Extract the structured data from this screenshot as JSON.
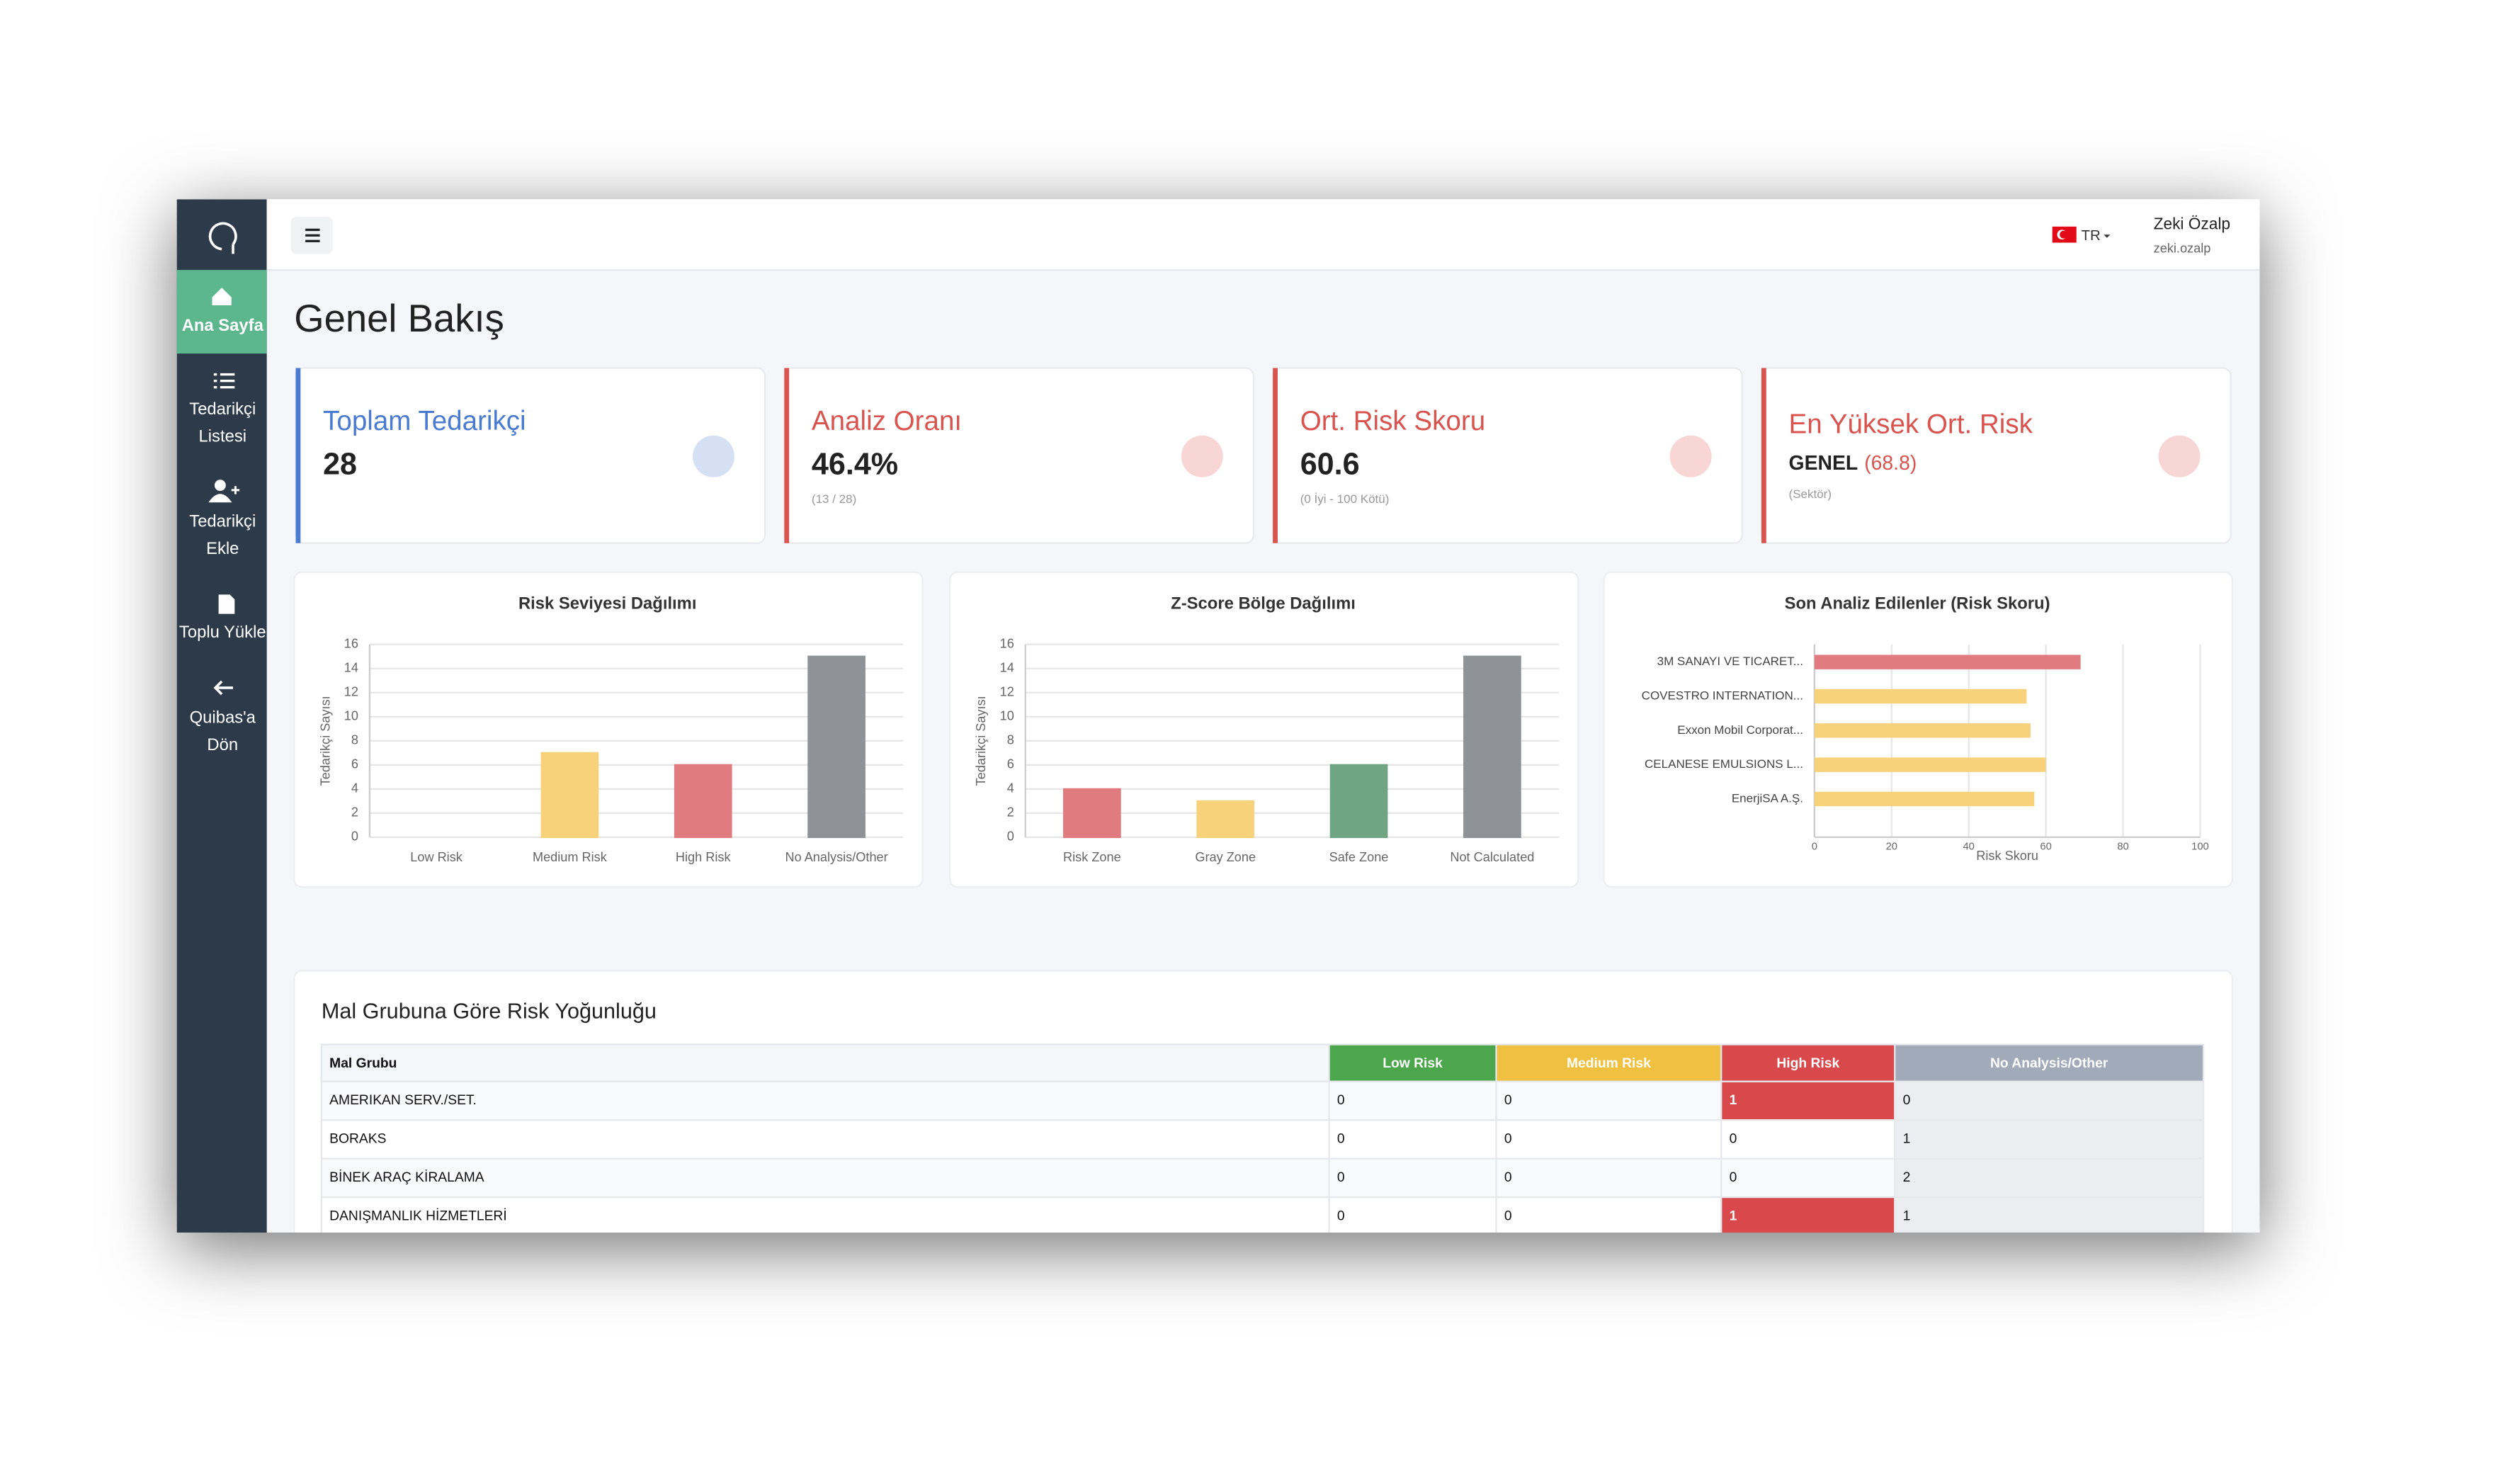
{
  "sidebar": {
    "items": [
      {
        "lines": [
          "Ana Sayfa"
        ]
      },
      {
        "lines": [
          "Tedarikçi",
          "Listesi"
        ]
      },
      {
        "lines": [
          "Tedarikçi",
          "Ekle"
        ]
      },
      {
        "lines": [
          "Toplu Yükle"
        ]
      },
      {
        "lines": [
          "Quibas'a",
          "Dön"
        ]
      }
    ]
  },
  "header": {
    "language": "TR",
    "user_name": "Zeki Özalp",
    "username": "zeki.ozalp"
  },
  "page_title": "Genel Bakış",
  "cards": [
    {
      "title": "Toplam Tedarikçi",
      "value": "28",
      "color": "#4a7bd0"
    },
    {
      "title": "Analiz Oranı",
      "value": "46.4%",
      "note": "(13 / 28)",
      "color": "#d9534f"
    },
    {
      "title": "Ort. Risk Skoru",
      "value": "60.6",
      "note": "(0 İyi - 100 Kötü)",
      "color": "#d9534f"
    },
    {
      "title": "En Yüksek Ort. Risk",
      "value": "GENEL",
      "detail": "(68.8)",
      "note": "(Sektör)",
      "color": "#d9534f"
    }
  ],
  "charts": [
    {
      "type": "bar",
      "title": "Risk Seviyesi Dağılımı",
      "y_label": "Tedarikçi Sayısı",
      "categories": [
        "Low Risk",
        "Medium Risk",
        "High Risk",
        "No Analysis/Other"
      ],
      "values": [
        0,
        7,
        6,
        15
      ],
      "colors": [
        "#7fbf7f",
        "#f7d27a",
        "#e07b7f",
        "#8f9398"
      ],
      "ylim": [
        0,
        16
      ],
      "yticks": [
        0,
        2,
        4,
        6,
        8,
        10,
        12,
        14,
        16
      ],
      "grid": true
    },
    {
      "type": "bar",
      "title": "Z-Score Bölge Dağılımı",
      "y_label": "Tedarikçi Sayısı",
      "categories": [
        "Risk Zone",
        "Gray Zone",
        "Safe Zone",
        "Not Calculated"
      ],
      "values": [
        4,
        3,
        6,
        15
      ],
      "colors": [
        "#e07b7f",
        "#f7d27a",
        "#6fa583",
        "#8f9398"
      ],
      "ylim": [
        0,
        16
      ],
      "yticks": [
        0,
        2,
        4,
        6,
        8,
        10,
        12,
        14,
        16
      ],
      "grid": true
    },
    {
      "type": "hbar",
      "title": "Son Analiz Edilenler (Risk Skoru)",
      "x_label": "Risk Skoru",
      "categories": [
        "3M SANAYI VE TICARET...",
        "COVESTRO INTERNATION...",
        "Exxon Mobil Corporat...",
        "CELANESE EMULSIONS L...",
        "EnerjiSA A.Ş."
      ],
      "values": [
        69,
        55,
        56,
        60,
        57
      ],
      "colors": [
        "#e07b7f",
        "#f7d27a",
        "#f7d27a",
        "#f7d27a",
        "#f7d27a"
      ],
      "xlim": [
        0,
        100
      ],
      "xticks": [
        0,
        20,
        40,
        60,
        80,
        100
      ],
      "grid": true
    }
  ],
  "table": {
    "title": "Mal Grubuna Göre Risk Yoğunluğu",
    "headers": [
      "Mal Grubu",
      "Low Risk",
      "Medium Risk",
      "High Risk",
      "No Analysis/Other"
    ],
    "column_colors": [
      "#f4f6f9",
      "#4ca64c",
      "#f0c040",
      "#d9484b",
      "#a0aab8"
    ],
    "rows": [
      [
        "AMERIKAN SERV./SET.",
        0,
        0,
        1,
        0
      ],
      [
        "BORAKS",
        0,
        0,
        0,
        1
      ],
      [
        "BİNEK ARAÇ KİRALAMA",
        0,
        0,
        0,
        2
      ],
      [
        "DANIŞMANLIK HİZMETLERİ",
        0,
        0,
        1,
        1
      ]
    ]
  }
}
